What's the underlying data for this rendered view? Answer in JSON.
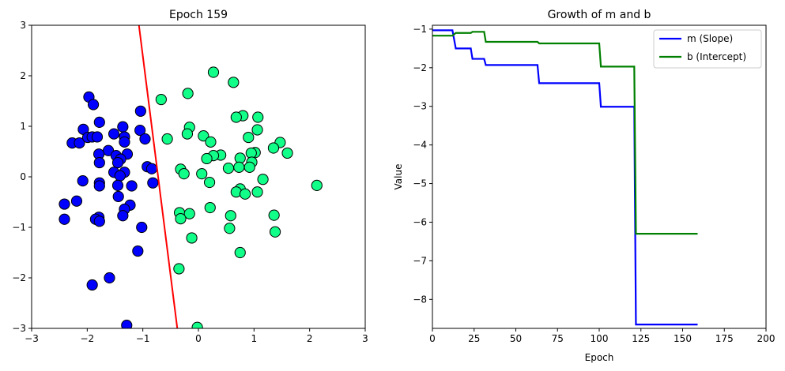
{
  "chart_data": [
    {
      "type": "scatter",
      "title": "Epoch 159",
      "xlim": [
        -3,
        3
      ],
      "ylim": [
        -3,
        3
      ],
      "xticks": [
        "−3",
        "−2",
        "−1",
        "0",
        "1",
        "2",
        "3"
      ],
      "yticks": [
        "−3",
        "−2",
        "−1",
        "0",
        "1",
        "2",
        "3"
      ],
      "colors": {
        "class0": "#0000ff",
        "class1": "#11ff88",
        "line": "#ff0000"
      },
      "line": {
        "x1": -0.38,
        "y1": -3.0,
        "x2": -1.07,
        "y2": 3.0
      },
      "class0": [
        [
          -1.97,
          1.58
        ],
        [
          -1.89,
          1.43
        ],
        [
          -1.04,
          1.3
        ],
        [
          -2.07,
          0.94
        ],
        [
          -1.78,
          1.08
        ],
        [
          -2.27,
          0.67
        ],
        [
          -2.14,
          0.67
        ],
        [
          -1.99,
          0.78
        ],
        [
          -1.91,
          0.79
        ],
        [
          -1.82,
          0.79
        ],
        [
          -1.36,
          0.99
        ],
        [
          -1.33,
          0.79
        ],
        [
          -1.52,
          0.85
        ],
        [
          -1.05,
          0.92
        ],
        [
          -0.96,
          0.75
        ],
        [
          -1.62,
          0.52
        ],
        [
          -1.79,
          0.45
        ],
        [
          -1.48,
          0.42
        ],
        [
          -1.28,
          0.45
        ],
        [
          -1.4,
          0.35
        ],
        [
          -1.78,
          0.28
        ],
        [
          -1.45,
          0.28
        ],
        [
          -0.92,
          0.2
        ],
        [
          -0.84,
          0.16
        ],
        [
          -1.52,
          0.09
        ],
        [
          -1.33,
          0.09
        ],
        [
          -1.41,
          0.02
        ],
        [
          -2.08,
          -0.08
        ],
        [
          -1.78,
          -0.12
        ],
        [
          -1.78,
          -0.18
        ],
        [
          -1.45,
          -0.17
        ],
        [
          -1.2,
          -0.18
        ],
        [
          -0.82,
          -0.12
        ],
        [
          -1.44,
          -0.39
        ],
        [
          -2.19,
          -0.48
        ],
        [
          -2.41,
          -0.54
        ],
        [
          -1.23,
          -0.56
        ],
        [
          -1.33,
          -0.64
        ],
        [
          -1.79,
          -0.8
        ],
        [
          -1.85,
          -0.84
        ],
        [
          -1.36,
          -0.77
        ],
        [
          -1.78,
          -0.88
        ],
        [
          -2.41,
          -0.84
        ],
        [
          -1.02,
          -1.0
        ],
        [
          -1.09,
          -1.47
        ],
        [
          -1.6,
          -2.0
        ],
        [
          -1.91,
          -2.14
        ],
        [
          -1.29,
          -2.94
        ],
        [
          -1.33,
          0.69
        ]
      ],
      "class1": [
        [
          0.27,
          2.07
        ],
        [
          0.63,
          1.87
        ],
        [
          -0.19,
          1.65
        ],
        [
          -0.67,
          1.53
        ],
        [
          0.8,
          1.21
        ],
        [
          0.68,
          1.18
        ],
        [
          1.07,
          1.18
        ],
        [
          1.06,
          0.93
        ],
        [
          -0.16,
          0.98
        ],
        [
          -0.2,
          0.85
        ],
        [
          0.09,
          0.81
        ],
        [
          -0.56,
          0.75
        ],
        [
          0.9,
          0.78
        ],
        [
          1.47,
          0.68
        ],
        [
          0.22,
          0.69
        ],
        [
          1.35,
          0.57
        ],
        [
          1.6,
          0.47
        ],
        [
          1.02,
          0.48
        ],
        [
          0.95,
          0.47
        ],
        [
          0.4,
          0.43
        ],
        [
          0.27,
          0.42
        ],
        [
          0.15,
          0.36
        ],
        [
          0.75,
          0.37
        ],
        [
          0.96,
          0.29
        ],
        [
          0.92,
          0.19
        ],
        [
          0.73,
          0.19
        ],
        [
          0.54,
          0.17
        ],
        [
          -0.32,
          0.15
        ],
        [
          -0.26,
          0.06
        ],
        [
          0.06,
          0.06
        ],
        [
          1.16,
          -0.05
        ],
        [
          0.2,
          -0.11
        ],
        [
          2.13,
          -0.17
        ],
        [
          0.75,
          -0.24
        ],
        [
          0.68,
          -0.3
        ],
        [
          0.84,
          -0.34
        ],
        [
          1.06,
          -0.3
        ],
        [
          0.21,
          -0.61
        ],
        [
          -0.34,
          -0.71
        ],
        [
          -0.16,
          -0.73
        ],
        [
          0.58,
          -0.77
        ],
        [
          1.36,
          -0.76
        ],
        [
          -0.32,
          -0.83
        ],
        [
          0.56,
          -1.02
        ],
        [
          1.38,
          -1.09
        ],
        [
          -0.12,
          -1.21
        ],
        [
          0.75,
          -1.5
        ],
        [
          -0.35,
          -1.82
        ],
        [
          -0.02,
          -2.98
        ]
      ]
    },
    {
      "type": "line",
      "title": "Growth of m and b",
      "xlabel": "Epoch",
      "ylabel": "Value",
      "xlim": [
        0,
        200
      ],
      "ylim": [
        -8.75,
        -0.9
      ],
      "xticks": [
        "0",
        "25",
        "50",
        "75",
        "100",
        "125",
        "150",
        "175",
        "200"
      ],
      "yticks": [
        "−8",
        "−7",
        "−6",
        "−5",
        "−4",
        "−3",
        "−2",
        "−1"
      ],
      "legend_position": "top-right",
      "series": [
        {
          "name": "m (Slope)",
          "color": "#0000ff",
          "points": [
            [
              0,
              -1.03
            ],
            [
              12,
              -1.03
            ],
            [
              14,
              -1.5
            ],
            [
              23,
              -1.5
            ],
            [
              24,
              -1.77
            ],
            [
              31,
              -1.77
            ],
            [
              32,
              -1.93
            ],
            [
              63,
              -1.93
            ],
            [
              64,
              -2.4
            ],
            [
              100,
              -2.4
            ],
            [
              101,
              -3.01
            ],
            [
              121,
              -3.01
            ],
            [
              122,
              -8.65
            ],
            [
              159,
              -8.65
            ]
          ]
        },
        {
          "name": "b (Intercept)",
          "color": "#008000",
          "points": [
            [
              0,
              -1.17
            ],
            [
              12,
              -1.17
            ],
            [
              14,
              -1.1
            ],
            [
              23,
              -1.1
            ],
            [
              24,
              -1.07
            ],
            [
              31,
              -1.07
            ],
            [
              32,
              -1.33
            ],
            [
              63,
              -1.33
            ],
            [
              64,
              -1.37
            ],
            [
              100,
              -1.37
            ],
            [
              101,
              -1.97
            ],
            [
              121,
              -1.97
            ],
            [
              122,
              -6.3
            ],
            [
              159,
              -6.3
            ]
          ]
        }
      ]
    }
  ]
}
